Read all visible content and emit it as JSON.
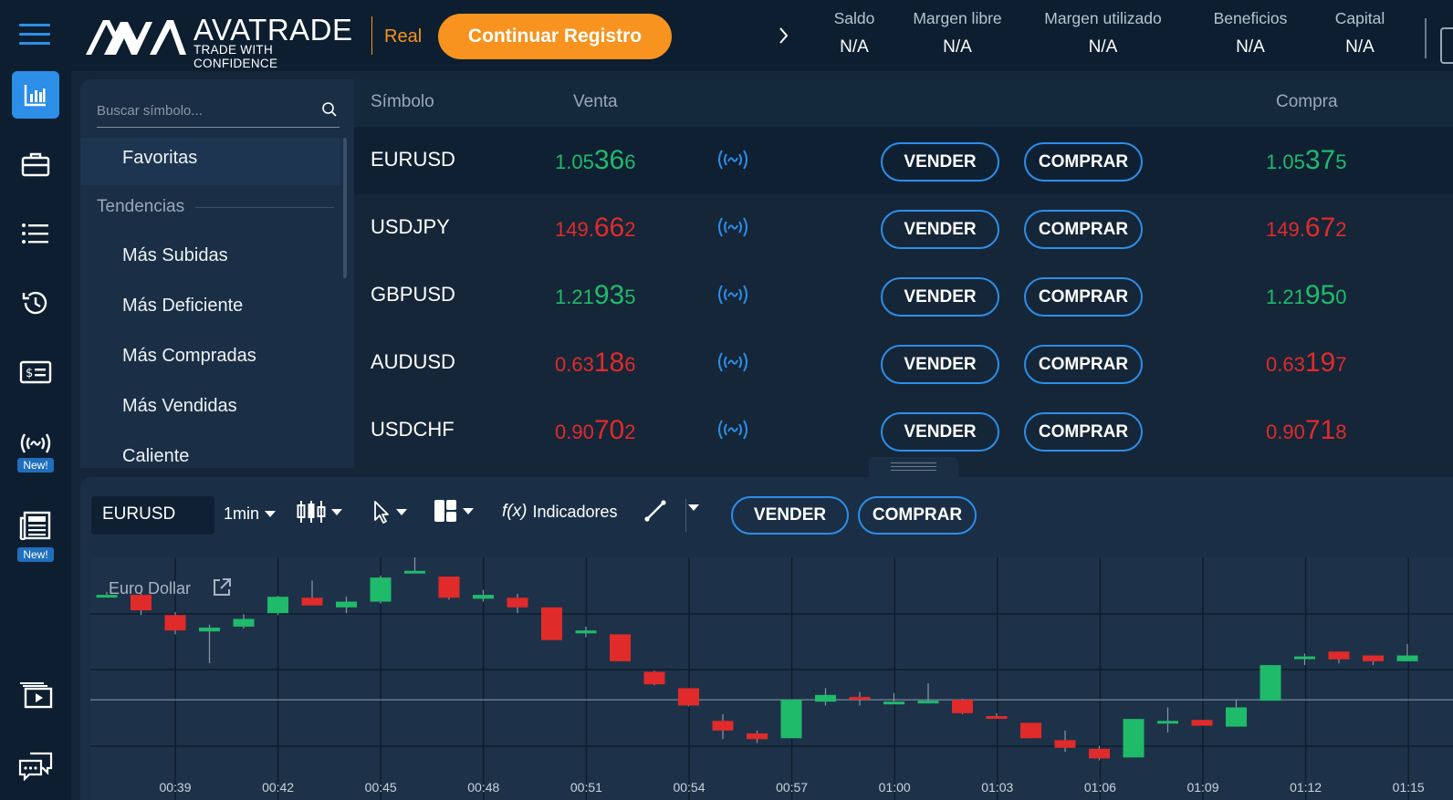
{
  "header": {
    "logo_word": "AVATRADE",
    "logo_tagline": "TRADE WITH CONFIDENCE",
    "account_type": "Real",
    "register_button": "Continuar Registro",
    "stats": [
      {
        "label": "Saldo",
        "value": "N/A"
      },
      {
        "label": "Margen libre",
        "value": "N/A"
      },
      {
        "label": "Margen utilizado",
        "value": "N/A"
      },
      {
        "label": "Beneficios",
        "value": "N/A"
      },
      {
        "label": "Capital",
        "value": "N/A"
      }
    ]
  },
  "sidebar": {
    "icons": [
      "chart-icon",
      "briefcase-icon",
      "list-icon",
      "history-icon",
      "money-icon",
      "live-signal-icon",
      "news-icon",
      "video-icon",
      "chat-icon"
    ],
    "new_badge": "New!",
    "active_color": "#2d8ee8"
  },
  "watchlist": {
    "search_placeholder": "Buscar símbolo...",
    "favorites": "Favoritas",
    "section_title": "Tendencias",
    "items": [
      "Más Subidas",
      "Más Deficiente",
      "Más Compradas",
      "Más Vendidas",
      "Caliente"
    ]
  },
  "quotes": {
    "headers": {
      "symbol": "Símbolo",
      "sell": "Venta",
      "buy": "Compra"
    },
    "sell_label": "VENDER",
    "buy_label": "COMPRAR",
    "rows": [
      {
        "symbol": "EURUSD",
        "color": "green",
        "sell": [
          "1.05",
          "36",
          "6"
        ],
        "buy": [
          "1.05",
          "37",
          "5"
        ]
      },
      {
        "symbol": "USDJPY",
        "color": "red",
        "sell": [
          "149.",
          "66",
          "2"
        ],
        "buy": [
          "149.",
          "67",
          "2"
        ]
      },
      {
        "symbol": "GBPUSD",
        "color": "green",
        "sell": [
          "1.21",
          "93",
          "5"
        ],
        "buy": [
          "1.21",
          "95",
          "0"
        ]
      },
      {
        "symbol": "AUDUSD",
        "color": "red",
        "sell": [
          "0.63",
          "18",
          "6"
        ],
        "buy": [
          "0.63",
          "19",
          "7"
        ]
      },
      {
        "symbol": "USDCHF",
        "color": "red",
        "sell": [
          "0.90",
          "70",
          "2"
        ],
        "buy": [
          "0.90",
          "71",
          "8"
        ]
      }
    ]
  },
  "chart_toolbar": {
    "symbol": "EURUSD",
    "interval": "1min",
    "indicators": "Indicadores",
    "fx_glyph": "f(x)",
    "sell": "VENDER",
    "buy": "COMPRAR"
  },
  "chart": {
    "title": "Euro Dollar",
    "up_color": "#1fba6a",
    "down_color": "#e12a2a"
  },
  "chart_data": {
    "type": "candlestick",
    "x_ticks": [
      "00:39",
      "00:42",
      "00:45",
      "00:48",
      "00:51",
      "00:54",
      "00:57",
      "01:00",
      "01:03",
      "01:06",
      "01:09",
      "01:12",
      "01:15"
    ],
    "candles": [
      {
        "o": 0.545,
        "h": 0.56,
        "l": 0.53,
        "c": 0.545,
        "dir": "up"
      },
      {
        "o": 0.545,
        "h": 0.555,
        "l": 0.44,
        "c": 0.465,
        "dir": "down"
      },
      {
        "o": 0.44,
        "h": 0.455,
        "l": 0.34,
        "c": 0.36,
        "dir": "down"
      },
      {
        "o": 0.355,
        "h": 0.39,
        "l": 0.19,
        "c": 0.375,
        "dir": "up"
      },
      {
        "o": 0.38,
        "h": 0.445,
        "l": 0.37,
        "c": 0.42,
        "dir": "up"
      },
      {
        "o": 0.45,
        "h": 0.54,
        "l": 0.44,
        "c": 0.535,
        "dir": "up"
      },
      {
        "o": 0.53,
        "h": 0.62,
        "l": 0.49,
        "c": 0.49,
        "dir": "down"
      },
      {
        "o": 0.48,
        "h": 0.535,
        "l": 0.45,
        "c": 0.51,
        "dir": "up"
      },
      {
        "o": 0.51,
        "h": 0.645,
        "l": 0.5,
        "c": 0.635,
        "dir": "up"
      },
      {
        "o": 0.67,
        "h": 0.745,
        "l": 0.66,
        "c": 0.67,
        "dir": "up"
      },
      {
        "o": 0.64,
        "h": 0.64,
        "l": 0.52,
        "c": 0.53,
        "dir": "down"
      },
      {
        "o": 0.525,
        "h": 0.57,
        "l": 0.51,
        "c": 0.545,
        "dir": "up"
      },
      {
        "o": 0.53,
        "h": 0.55,
        "l": 0.45,
        "c": 0.48,
        "dir": "down"
      },
      {
        "o": 0.48,
        "h": 0.48,
        "l": 0.31,
        "c": 0.31,
        "dir": "down"
      },
      {
        "o": 0.36,
        "h": 0.38,
        "l": 0.325,
        "c": 0.345,
        "dir": "up"
      },
      {
        "o": 0.34,
        "h": 0.34,
        "l": 0.2,
        "c": 0.2,
        "dir": "down"
      },
      {
        "o": 0.145,
        "h": 0.15,
        "l": 0.075,
        "c": 0.08,
        "dir": "down"
      },
      {
        "o": 0.06,
        "h": 0.06,
        "l": -0.035,
        "c": -0.03,
        "dir": "down"
      },
      {
        "o": -0.11,
        "h": -0.075,
        "l": -0.205,
        "c": -0.16,
        "dir": "down"
      },
      {
        "o": -0.175,
        "h": -0.16,
        "l": -0.225,
        "c": -0.205,
        "dir": "down"
      },
      {
        "o": -0.2,
        "h": 0.0,
        "l": -0.2,
        "c": 0.0,
        "dir": "up"
      },
      {
        "o": -0.01,
        "h": 0.06,
        "l": -0.03,
        "c": 0.025,
        "dir": "up"
      },
      {
        "o": 0.015,
        "h": 0.04,
        "l": -0.03,
        "c": 0.0,
        "dir": "down"
      },
      {
        "o": -0.01,
        "h": 0.035,
        "l": -0.01,
        "c": -0.01,
        "dir": "up"
      },
      {
        "o": -0.01,
        "h": 0.085,
        "l": -0.015,
        "c": -0.005,
        "dir": "up"
      },
      {
        "o": 0.0,
        "h": 0.005,
        "l": -0.075,
        "c": -0.07,
        "dir": "down"
      },
      {
        "o": -0.085,
        "h": -0.07,
        "l": -0.09,
        "c": -0.085,
        "dir": "down"
      },
      {
        "o": -0.12,
        "h": -0.12,
        "l": -0.2,
        "c": -0.2,
        "dir": "down"
      },
      {
        "o": -0.21,
        "h": -0.16,
        "l": -0.27,
        "c": -0.25,
        "dir": "down"
      },
      {
        "o": -0.255,
        "h": -0.24,
        "l": -0.315,
        "c": -0.305,
        "dir": "down"
      },
      {
        "o": -0.3,
        "h": -0.1,
        "l": -0.3,
        "c": -0.1,
        "dir": "up"
      },
      {
        "o": -0.115,
        "h": -0.04,
        "l": -0.17,
        "c": -0.11,
        "dir": "up"
      },
      {
        "o": -0.105,
        "h": -0.105,
        "l": -0.135,
        "c": -0.135,
        "dir": "down"
      },
      {
        "o": -0.14,
        "h": 0.0,
        "l": -0.14,
        "c": -0.04,
        "dir": "up"
      },
      {
        "o": -0.005,
        "h": 0.18,
        "l": -0.005,
        "c": 0.18,
        "dir": "up"
      },
      {
        "o": 0.225,
        "h": 0.24,
        "l": 0.18,
        "c": 0.225,
        "dir": "up"
      },
      {
        "o": 0.25,
        "h": 0.25,
        "l": 0.19,
        "c": 0.21,
        "dir": "down"
      },
      {
        "o": 0.23,
        "h": 0.23,
        "l": 0.18,
        "c": 0.2,
        "dir": "down"
      },
      {
        "o": 0.2,
        "h": 0.29,
        "l": 0.2,
        "c": 0.23,
        "dir": "up"
      }
    ],
    "ylim": [
      -0.36,
      0.74
    ],
    "grid": true
  }
}
